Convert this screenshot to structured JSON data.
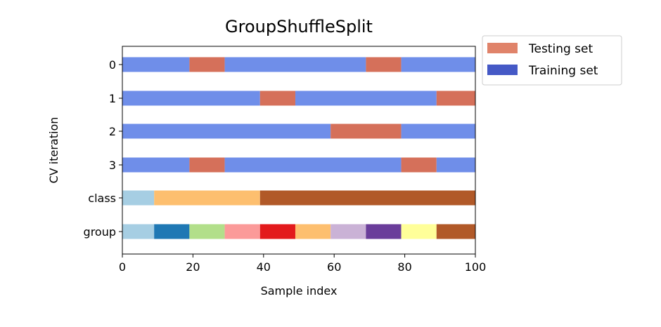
{
  "chart_data": {
    "type": "bar",
    "orientation": "horizontal",
    "title": "GroupShuffleSplit",
    "xlabel": "Sample index",
    "ylabel": "CV iteration",
    "xlim": [
      0,
      100
    ],
    "x_ticks": [
      0,
      20,
      40,
      60,
      80,
      100
    ],
    "x_tick_labels": [
      "0",
      "20",
      "40",
      "60",
      "80",
      "100"
    ],
    "grid": false,
    "legend_position": "outside-top-right",
    "legend": [
      {
        "label": "Testing set",
        "color": "#e0836a"
      },
      {
        "label": "Training set",
        "color": "#4559c6"
      }
    ],
    "colors": {
      "train": "#6f8ee9",
      "test": "#d5705a"
    },
    "rows": [
      {
        "label": "0",
        "kind": "cv",
        "segments": [
          {
            "start": 0,
            "end": 19,
            "set": "train"
          },
          {
            "start": 19,
            "end": 29,
            "set": "test"
          },
          {
            "start": 29,
            "end": 69,
            "set": "train"
          },
          {
            "start": 69,
            "end": 79,
            "set": "test"
          },
          {
            "start": 79,
            "end": 100,
            "set": "train"
          }
        ]
      },
      {
        "label": "1",
        "kind": "cv",
        "segments": [
          {
            "start": 0,
            "end": 39,
            "set": "train"
          },
          {
            "start": 39,
            "end": 49,
            "set": "test"
          },
          {
            "start": 49,
            "end": 89,
            "set": "train"
          },
          {
            "start": 89,
            "end": 100,
            "set": "test"
          }
        ]
      },
      {
        "label": "2",
        "kind": "cv",
        "segments": [
          {
            "start": 0,
            "end": 59,
            "set": "train"
          },
          {
            "start": 59,
            "end": 79,
            "set": "test"
          },
          {
            "start": 79,
            "end": 100,
            "set": "train"
          }
        ]
      },
      {
        "label": "3",
        "kind": "cv",
        "segments": [
          {
            "start": 0,
            "end": 19,
            "set": "train"
          },
          {
            "start": 19,
            "end": 29,
            "set": "test"
          },
          {
            "start": 29,
            "end": 79,
            "set": "train"
          },
          {
            "start": 79,
            "end": 89,
            "set": "test"
          },
          {
            "start": 89,
            "end": 100,
            "set": "train"
          }
        ]
      },
      {
        "label": "class",
        "kind": "class",
        "segments": [
          {
            "start": 0,
            "end": 9,
            "color": "#a6cee3"
          },
          {
            "start": 9,
            "end": 39,
            "color": "#fdbf6f"
          },
          {
            "start": 39,
            "end": 100,
            "color": "#b15928"
          }
        ]
      },
      {
        "label": "group",
        "kind": "group",
        "segments": [
          {
            "start": 0,
            "end": 9,
            "color": "#a6cee3"
          },
          {
            "start": 9,
            "end": 19,
            "color": "#1f78b4"
          },
          {
            "start": 19,
            "end": 29,
            "color": "#b2df8a"
          },
          {
            "start": 29,
            "end": 39,
            "color": "#fb9a99"
          },
          {
            "start": 39,
            "end": 49,
            "color": "#e31a1c"
          },
          {
            "start": 49,
            "end": 59,
            "color": "#fdbf6f"
          },
          {
            "start": 59,
            "end": 69,
            "color": "#cab2d6"
          },
          {
            "start": 69,
            "end": 79,
            "color": "#6a3d9a"
          },
          {
            "start": 79,
            "end": 89,
            "color": "#ffff99"
          },
          {
            "start": 89,
            "end": 100,
            "color": "#b15928"
          }
        ]
      }
    ]
  }
}
